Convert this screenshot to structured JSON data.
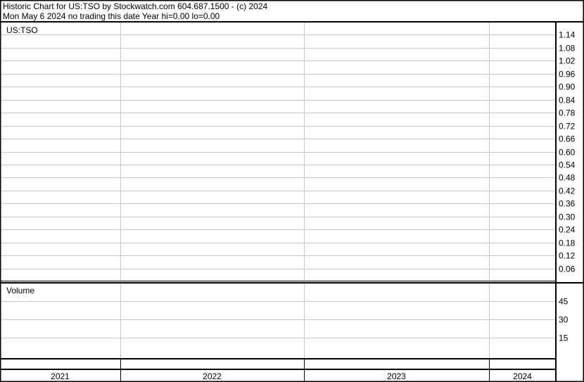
{
  "header": {
    "title_line": "Historic Chart for US:TSO by Stockwatch.com 604.687.1500 - (c) 2024",
    "status_line": "Mon May  6 2024   no trading this date  Year hi=0.00  lo=0.00"
  },
  "chart_data": [
    {
      "type": "line",
      "title": "US:TSO",
      "y_ticks": [
        1.14,
        1.08,
        1.02,
        0.96,
        0.9,
        0.84,
        0.78,
        0.72,
        0.66,
        0.6,
        0.54,
        0.48,
        0.42,
        0.36,
        0.3,
        0.24,
        0.18,
        0.12,
        0.06
      ],
      "ylim": [
        0,
        1.2
      ],
      "grid": true,
      "axis_side": "right",
      "series": []
    },
    {
      "type": "bar",
      "title": "Volume",
      "y_ticks": [
        45,
        30,
        15
      ],
      "ylim": [
        0,
        60
      ],
      "grid": true,
      "axis_side": "right",
      "series": []
    }
  ],
  "x_axis": {
    "categories": [
      "2021",
      "2022",
      "2023",
      "2024"
    ]
  },
  "colors": {
    "grid": "#c8c8c8",
    "border": "#000000",
    "background": "#ffffff"
  }
}
